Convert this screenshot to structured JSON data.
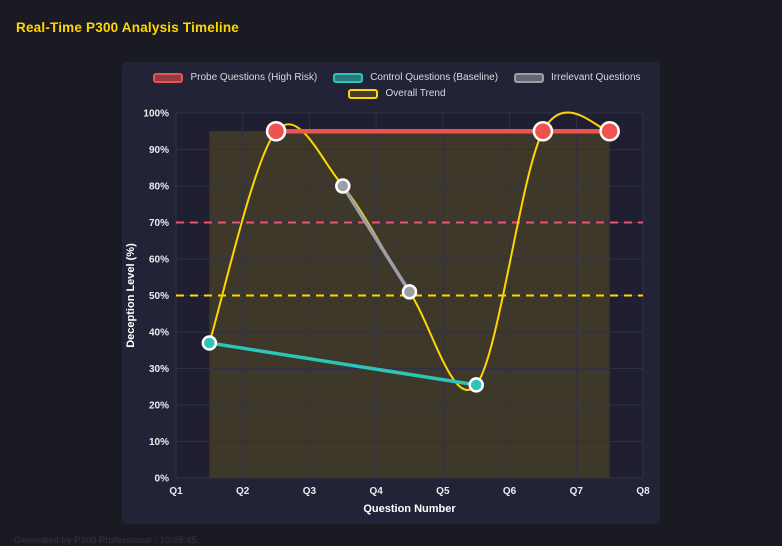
{
  "page": {
    "title": "Real-Time P300 Analysis Timeline",
    "footer": "Generated by P300 Professional - 10:05:45"
  },
  "legend": {
    "row1": [
      {
        "label": "Probe Questions (High Risk)",
        "border": "#ef5350",
        "fill": "rgba(239,83,80,0.55)"
      },
      {
        "label": "Control Questions (Baseline)",
        "border": "#2cc5b8",
        "fill": "rgba(44,197,184,0.55)"
      },
      {
        "label": "Irrelevant Questions",
        "border": "#9b9fa7",
        "fill": "rgba(155,159,167,0.55)"
      }
    ],
    "row2": [
      {
        "label": "Overall Trend",
        "border": "#ffd700",
        "fill": "rgba(255,215,0,0.15)"
      }
    ]
  },
  "chart_data": {
    "type": "line",
    "title": "Real-Time P300 Analysis Timeline",
    "xlabel": "Question Number",
    "ylabel": "Deception Level (%)",
    "x_ticks": [
      "Q1",
      "Q2",
      "Q3",
      "Q4",
      "Q5",
      "Q6",
      "Q7",
      "Q8"
    ],
    "x_tick_values": [
      1,
      2,
      3,
      4,
      5,
      6,
      7,
      8
    ],
    "y_ticks": [
      "0%",
      "10%",
      "20%",
      "30%",
      "40%",
      "50%",
      "60%",
      "70%",
      "80%",
      "90%",
      "100%"
    ],
    "y_tick_values": [
      0,
      10,
      20,
      30,
      40,
      50,
      60,
      70,
      80,
      90,
      100
    ],
    "xlim": [
      1,
      8
    ],
    "ylim": [
      0,
      100
    ],
    "grid": true,
    "legend_position": "top",
    "series": [
      {
        "name": "Overall Trend",
        "color": "#ffd700",
        "line_width": 2,
        "smooth": true,
        "marker_radius": 0,
        "marker_border": "",
        "x": [
          1.5,
          2.5,
          3.5,
          4.5,
          5.5,
          6.5,
          7.5
        ],
        "y": [
          37,
          95,
          80,
          51,
          25.5,
          95,
          95
        ]
      },
      {
        "name": "Irrelevant Questions",
        "color": "#9b9fa7",
        "line_width": 3.5,
        "smooth": false,
        "marker_radius": 6.5,
        "marker_border": "#ffffff",
        "x": [
          3.5,
          4.5
        ],
        "y": [
          80,
          51
        ]
      },
      {
        "name": "Control Questions (Baseline)",
        "color": "#2cc5b8",
        "line_width": 3.5,
        "smooth": false,
        "marker_radius": 6.5,
        "marker_border": "#ffffff",
        "x": [
          1.5,
          5.5
        ],
        "y": [
          37,
          25.5
        ]
      },
      {
        "name": "Probe Questions (High Risk)",
        "color": "#ef5350",
        "line_width": 4.5,
        "smooth": false,
        "marker_radius": 9,
        "marker_border": "#ffffff",
        "x": [
          2.5,
          6.5,
          7.5
        ],
        "y": [
          95,
          95,
          95
        ]
      }
    ],
    "thresholds": [
      {
        "value": 70,
        "color": "#f2526e",
        "dash": "8 6"
      },
      {
        "value": 50,
        "color": "#ffd700",
        "dash": "8 6"
      }
    ],
    "band": {
      "x0": 1.5,
      "x1": 7.5,
      "y0": 0,
      "y1": 95,
      "fill": "rgba(255,215,0,0.14)"
    }
  },
  "colors": {
    "page_bg": "#1a1a23",
    "panel_bg": "#232337",
    "grid": "#2f2f4a",
    "title": "#ffd700",
    "tick_text": "#ececec",
    "axis_title_text": "#ffffff",
    "legend_text": "#d9d9de",
    "footer_text": "#34343f"
  }
}
